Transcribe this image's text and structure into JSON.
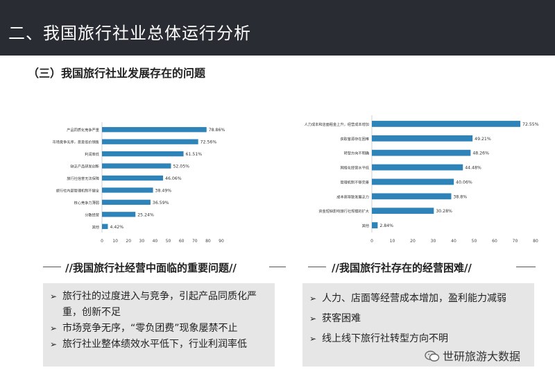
{
  "header": {
    "title": "二、我国旅行社业总体运行分析"
  },
  "subtitle": "（三）我国旅行社业发展存在的问题",
  "chart_data": [
    {
      "type": "bar",
      "orientation": "horizontal",
      "categories": [
        "产品同质化竞争严重",
        "市场竞争无序，恶意低价销售",
        "利润率低",
        "缺乏产品研发创新",
        "旅行社信誉无法保障",
        "旅行社内部管理机制不健全",
        "核心竞争力薄弱",
        "分散经营",
        "其他"
      ],
      "values": [
        78.86,
        72.56,
        61.51,
        52.05,
        46.06,
        38.49,
        36.59,
        25.24,
        4.42
      ],
      "data_labels": [
        "78.86%",
        "72.56%",
        "61.51%",
        "52.05%",
        "46.06%",
        "38.49%",
        "36.59%",
        "25.24%",
        "4.42%"
      ],
      "xlim": [
        0,
        90
      ],
      "xticks": [
        "0",
        "10",
        "20",
        "30",
        "40",
        "50",
        "60",
        "70",
        "80",
        "90"
      ],
      "bar_color": "#2e83b8",
      "grid": false
    },
    {
      "type": "bar",
      "orientation": "horizontal",
      "categories": [
        "人力成本和店面租金上升，经营成本增加",
        "获取客源存在困难",
        "转型方向不明确",
        "网络化经营水平低",
        "管理机制不够完善",
        "成本高导致发展乏力",
        "资金短缺影响旅行社规模的扩大",
        "其他"
      ],
      "values": [
        72.55,
        49.21,
        48.26,
        44.48,
        40.06,
        38.8,
        30.28,
        2.84
      ],
      "data_labels": [
        "72.55%",
        "49.21%",
        "48.26%",
        "44.48%",
        "40.06%",
        "38.8%",
        "30.28%",
        "2.84%"
      ],
      "xlim": [
        0,
        80
      ],
      "xticks": [
        "0",
        "10",
        "20",
        "30",
        "40",
        "50",
        "60",
        "70",
        "80"
      ],
      "bar_color": "#2e83b8",
      "grid": false
    }
  ],
  "left_section": {
    "title": "//我国旅行社经营中面临的重要问题//",
    "bullets": [
      "旅行社的过度进入与竞争，引起产品同质化严重，创新不足",
      "市场竞争无序，“零负团费”现象屡禁不止",
      "旅行社业整体绩效水平低下，行业利润率低"
    ]
  },
  "right_section": {
    "title": "//我国旅行社存在的经营困难//",
    "bullets": [
      "人力、店面等经营成本增加，盈利能力减弱",
      "获客困难",
      "线上线下旅行社转型方向不明"
    ]
  },
  "watermark": {
    "icon": "wechat-icon",
    "text": "世研旅游大数据"
  }
}
